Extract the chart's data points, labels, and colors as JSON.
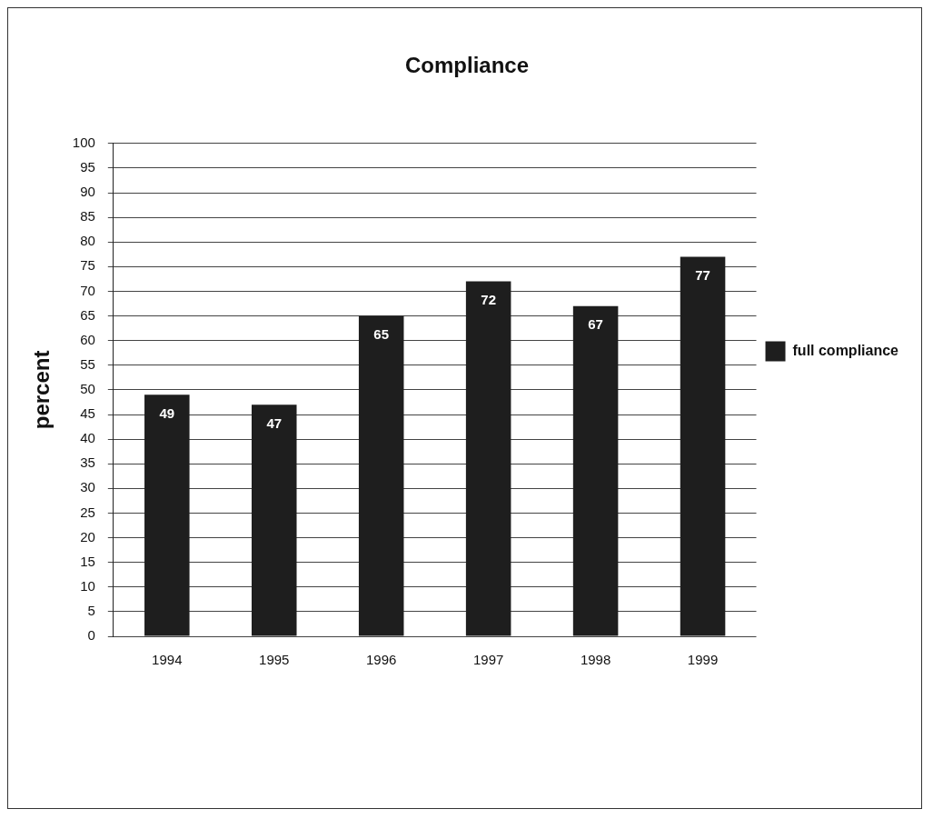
{
  "chart_data": {
    "type": "bar",
    "title": "Compliance",
    "ylabel": "percent",
    "categories": [
      "1994",
      "1995",
      "1996",
      "1997",
      "1998",
      "1999"
    ],
    "series": [
      {
        "name": "full compliance",
        "color": "#1e1e1e",
        "values": [
          49,
          47,
          65,
          72,
          67,
          77
        ]
      }
    ],
    "ylim": [
      0,
      100
    ],
    "yticks": [
      0,
      5,
      10,
      15,
      20,
      25,
      30,
      35,
      40,
      45,
      50,
      55,
      60,
      65,
      70,
      75,
      80,
      85,
      90,
      95,
      100
    ],
    "grid": "y",
    "legend": "right",
    "data_labels": true
  }
}
